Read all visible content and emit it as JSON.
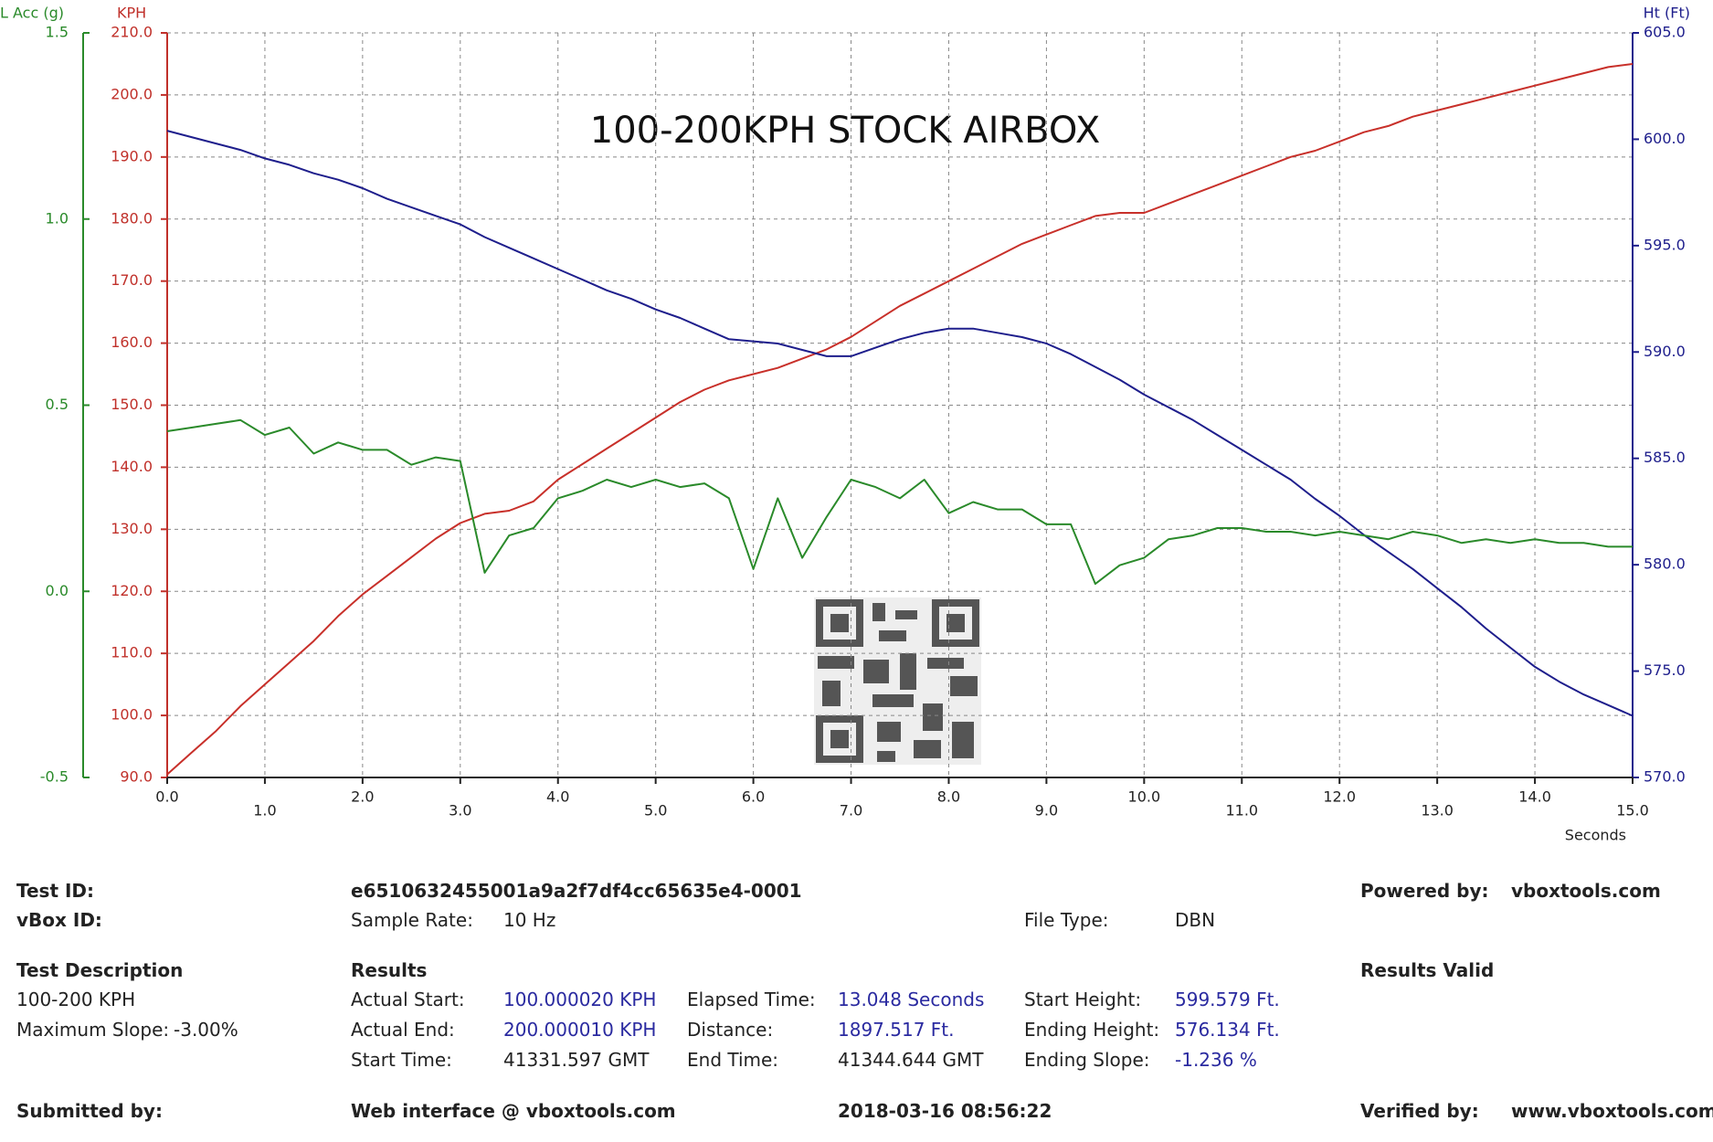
{
  "chart_data": {
    "type": "line",
    "title": "100-200KPH STOCK AIRBOX",
    "xlabel": "Seconds",
    "ylabel": "KPH",
    "y2label": "Ht (Ft)",
    "y3label": "L Acc (g)",
    "xlim": [
      0,
      15
    ],
    "xticks": [
      {
        "value": 0,
        "label": "0.0"
      },
      {
        "value": 1,
        "label": "1.0"
      },
      {
        "value": 2,
        "label": "2.0"
      },
      {
        "value": 3,
        "label": "3.0"
      },
      {
        "value": 4,
        "label": "4.0"
      },
      {
        "value": 5,
        "label": "5.0"
      },
      {
        "value": 6,
        "label": "6.0"
      },
      {
        "value": 7,
        "label": "7.0"
      },
      {
        "value": 8,
        "label": "8.0"
      },
      {
        "value": 9,
        "label": "9.0"
      },
      {
        "value": 10,
        "label": "10.0"
      },
      {
        "value": 11,
        "label": "11.0"
      },
      {
        "value": 12,
        "label": "12.0"
      },
      {
        "value": 13,
        "label": "13.0"
      },
      {
        "value": 14,
        "label": "14.0"
      },
      {
        "value": 15,
        "label": "15.0"
      }
    ],
    "ylim": [
      90,
      210
    ],
    "yticks": [
      {
        "value": 90,
        "label": "90.0"
      },
      {
        "value": 100,
        "label": "100.0"
      },
      {
        "value": 110,
        "label": "110.0"
      },
      {
        "value": 120,
        "label": "120.0"
      },
      {
        "value": 130,
        "label": "130.0"
      },
      {
        "value": 140,
        "label": "140.0"
      },
      {
        "value": 150,
        "label": "150.0"
      },
      {
        "value": 160,
        "label": "160.0"
      },
      {
        "value": 170,
        "label": "170.0"
      },
      {
        "value": 180,
        "label": "180.0"
      },
      {
        "value": 190,
        "label": "190.0"
      },
      {
        "value": 200,
        "label": "200.0"
      },
      {
        "value": 210,
        "label": "210.0"
      }
    ],
    "y2lim": [
      570,
      605
    ],
    "y2ticks": [
      {
        "value": 570,
        "label": "570.0"
      },
      {
        "value": 575,
        "label": "575.0"
      },
      {
        "value": 580,
        "label": "580.0"
      },
      {
        "value": 585,
        "label": "585.0"
      },
      {
        "value": 590,
        "label": "590.0"
      },
      {
        "value": 595,
        "label": "595.0"
      },
      {
        "value": 600,
        "label": "600.0"
      },
      {
        "value": 605,
        "label": "605.0"
      }
    ],
    "y3lim": [
      -0.5,
      1.5
    ],
    "y3ticks": [
      -0.5,
      {
        "value": 0,
        "label": "0.0"
      },
      0.5,
      {
        "value": 1,
        "label": "1.0"
      },
      1.5
    ],
    "grid": true,
    "y_color": "#c0302a",
    "y2_color": "#1e1e8c",
    "y3_color": "#2a8a2a",
    "x": [
      0,
      0.25,
      0.5,
      0.75,
      1,
      1.25,
      1.5,
      1.75,
      2,
      2.25,
      2.5,
      2.75,
      3,
      3.25,
      3.5,
      3.75,
      4,
      4.25,
      4.5,
      4.75,
      5,
      5.25,
      5.5,
      5.75,
      6,
      6.25,
      6.5,
      6.75,
      7,
      7.25,
      7.5,
      7.75,
      8,
      8.25,
      8.5,
      8.75,
      9,
      9.25,
      9.5,
      9.75,
      10,
      10.25,
      10.5,
      10.75,
      11,
      11.25,
      11.5,
      11.75,
      12,
      12.25,
      12.5,
      12.75,
      13,
      13.25,
      13.5,
      13.75,
      14,
      14.25,
      14.5,
      14.75,
      15
    ],
    "series": [
      {
        "color": "#c8302a",
        "axis": "y",
        "values": [
          90.5,
          94,
          97.5,
          101.5,
          105,
          108.5,
          112,
          116,
          119.5,
          122.5,
          125.5,
          128.5,
          131,
          132.5,
          133,
          134.5,
          138,
          140.5,
          143,
          145.5,
          148,
          150.5,
          152.5,
          154,
          155,
          156,
          157.5,
          159,
          161,
          163.5,
          166,
          168,
          170,
          172,
          174,
          176,
          177.5,
          179,
          180.5,
          181,
          181,
          182.5,
          184,
          185.5,
          187,
          188.5,
          190,
          191,
          192.5,
          194,
          195,
          196.5,
          197.5,
          198.5,
          199.5,
          200.5,
          201.5,
          202.5,
          203.5,
          204.5,
          205
        ]
      },
      {
        "color": "#1e1e8c",
        "axis": "y2",
        "values": [
          600.4,
          600.1,
          599.8,
          599.5,
          599.1,
          598.8,
          598.4,
          598.1,
          597.7,
          597.2,
          596.8,
          596.4,
          596.0,
          595.4,
          594.9,
          594.4,
          593.9,
          593.4,
          592.9,
          592.5,
          592.0,
          591.6,
          591.1,
          590.6,
          590.5,
          590.4,
          590.1,
          589.8,
          589.8,
          590.2,
          590.6,
          590.9,
          591.1,
          591.1,
          590.9,
          590.7,
          590.4,
          589.9,
          589.3,
          588.7,
          588.0,
          587.4,
          586.8,
          586.1,
          585.4,
          584.7,
          584.0,
          583.1,
          582.3,
          581.4,
          580.6,
          579.8,
          578.9,
          578.0,
          577.0,
          576.1,
          575.2,
          574.5,
          573.9,
          573.4,
          572.9
        ]
      },
      {
        "color": "#2a8a2a",
        "axis": "y3",
        "values": [
          0.43,
          0.44,
          0.45,
          0.46,
          0.42,
          0.44,
          0.37,
          0.4,
          0.38,
          0.38,
          0.34,
          0.36,
          0.35,
          0.05,
          0.15,
          0.17,
          0.25,
          0.27,
          0.3,
          0.28,
          0.3,
          0.28,
          0.29,
          0.25,
          0.06,
          0.25,
          0.09,
          0.2,
          0.3,
          0.28,
          0.25,
          0.3,
          0.21,
          0.24,
          0.22,
          0.22,
          0.18,
          0.18,
          0.02,
          0.07,
          0.09,
          0.14,
          0.15,
          0.17,
          0.17,
          0.16,
          0.16,
          0.15,
          0.16,
          0.15,
          0.14,
          0.16,
          0.15,
          0.13,
          0.14,
          0.13,
          0.14,
          0.13,
          0.13,
          0.12,
          0.12
        ]
      }
    ]
  },
  "report": {
    "test_id": {
      "label": "Test ID:",
      "value": "e6510632455001a9a2f7df4cc65635e4-0001"
    },
    "vbox_id": {
      "label": "vBox ID:"
    },
    "sample_rate": {
      "label": "Sample Rate:",
      "value": "10 Hz"
    },
    "file_type": {
      "label": "File Type:",
      "value": "DBN"
    },
    "powered_by": {
      "label": "Powered by:",
      "value": "vboxtools.com"
    },
    "test_description": {
      "heading": "Test Description",
      "text": "100-200 KPH",
      "max_slope_label": "Maximum Slope:",
      "max_slope": "-3.00%"
    },
    "results": {
      "heading": "Results",
      "valid": "Results Valid",
      "items": [
        {
          "label": "Actual Start:",
          "value": "100.000020 KPH"
        },
        {
          "label": "Actual End:",
          "value": "200.000010 KPH"
        },
        {
          "label": "Start Time:",
          "value": "41331.597 GMT"
        },
        {
          "label": "Elapsed Time:",
          "value": "13.048 Seconds"
        },
        {
          "label": "Distance:",
          "value": "1897.517 Ft."
        },
        {
          "label": "End Time:",
          "value": "41344.644 GMT"
        },
        {
          "label": "Start Height:",
          "value": "599.579 Ft."
        },
        {
          "label": "Ending Height:",
          "value": "576.134 Ft."
        },
        {
          "label": "Ending Slope:",
          "value": "-1.236 %"
        }
      ]
    },
    "footer": {
      "submitted_by": "Submitted by:",
      "web_interface": "Web interface @ vboxtools.com",
      "timestamp": "2018-03-16 08:56:22",
      "verified_by": "Verified by:",
      "verified_value": "www.vboxtools.com"
    }
  }
}
